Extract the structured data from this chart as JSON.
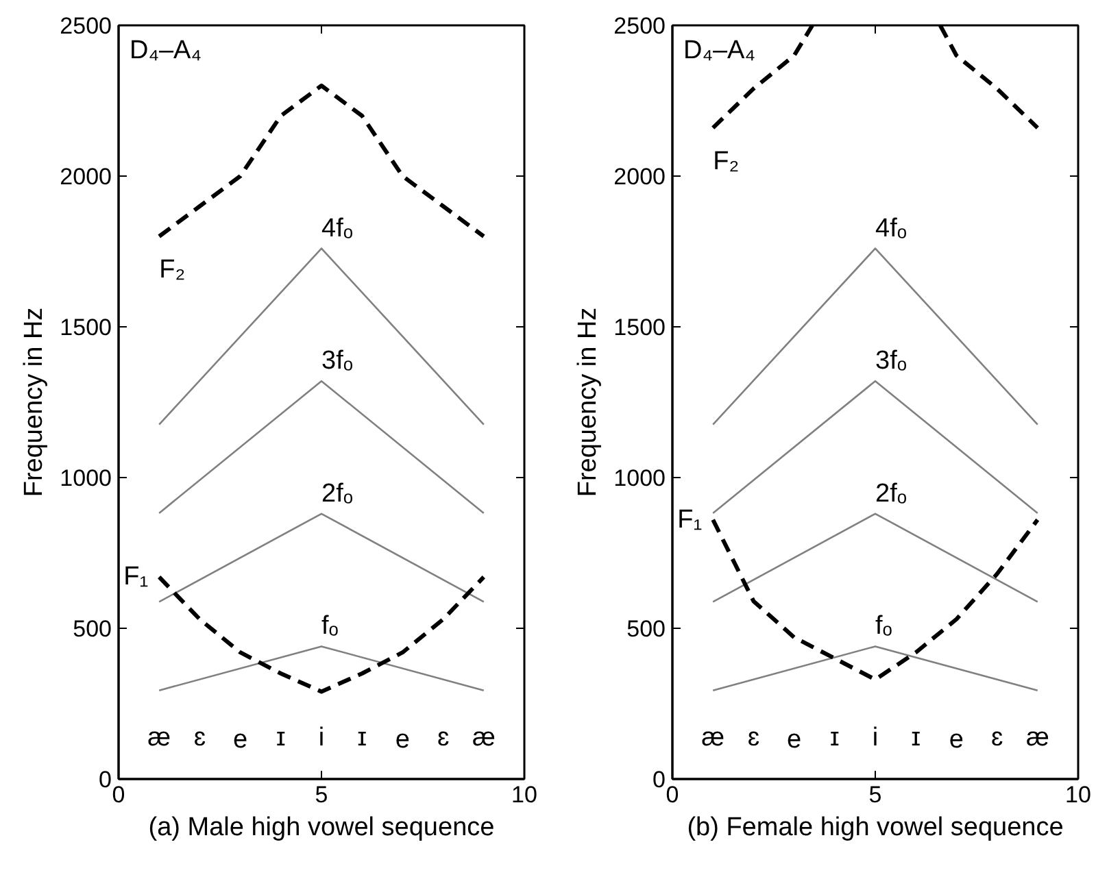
{
  "chart_data": [
    {
      "type": "line",
      "xlabel": "(a) Male high vowel sequence",
      "ylabel": "Frequency in Hz",
      "xlim": [
        0,
        10
      ],
      "ylim": [
        0,
        2500
      ],
      "xticks": [
        0,
        5,
        10
      ],
      "yticks": [
        0,
        500,
        1000,
        1500,
        2000,
        2500
      ],
      "grid": false,
      "series": [
        {
          "name": "fₒ",
          "color": "#808080",
          "x": [
            1,
            5,
            9
          ],
          "values": [
            294,
            440,
            294
          ],
          "line_style": "solid"
        },
        {
          "name": "2fₒ",
          "color": "#808080",
          "x": [
            1,
            5,
            9
          ],
          "values": [
            588,
            880,
            588
          ],
          "line_style": "solid"
        },
        {
          "name": "3fₒ",
          "color": "#808080",
          "x": [
            1,
            5,
            9
          ],
          "values": [
            882,
            1320,
            882
          ],
          "line_style": "solid"
        },
        {
          "name": "4fₒ",
          "color": "#808080",
          "x": [
            1,
            5,
            9
          ],
          "values": [
            1176,
            1760,
            1176
          ],
          "line_style": "solid"
        },
        {
          "name": "F₁",
          "color": "#000000",
          "x": [
            1,
            2,
            3,
            4,
            5,
            6,
            7,
            8,
            9
          ],
          "values": [
            670,
            530,
            420,
            350,
            290,
            350,
            420,
            530,
            670
          ],
          "line_style": "dashed"
        },
        {
          "name": "F₂",
          "color": "#000000",
          "x": [
            1,
            2,
            3,
            4,
            5,
            6,
            7,
            8,
            9
          ],
          "values": [
            1800,
            1900,
            2000,
            2200,
            2300,
            2200,
            2000,
            1900,
            1800
          ],
          "line_style": "dashed"
        }
      ],
      "annotations": [
        "D₄–A₄",
        "æ",
        "ɛ",
        "e",
        "ɪ",
        "i",
        "ɪ",
        "e",
        "ɛ",
        "æ"
      ]
    },
    {
      "type": "line",
      "xlabel": "(b) Female high vowel sequence",
      "ylabel": "Frequency in Hz",
      "xlim": [
        0,
        10
      ],
      "ylim": [
        0,
        2500
      ],
      "xticks": [
        0,
        5,
        10
      ],
      "yticks": [
        0,
        500,
        1000,
        1500,
        2000,
        2500
      ],
      "grid": false,
      "series": [
        {
          "name": "fₒ",
          "color": "#808080",
          "x": [
            1,
            5,
            9
          ],
          "values": [
            294,
            440,
            294
          ],
          "line_style": "solid"
        },
        {
          "name": "2fₒ",
          "color": "#808080",
          "x": [
            1,
            5,
            9
          ],
          "values": [
            588,
            880,
            588
          ],
          "line_style": "solid"
        },
        {
          "name": "3fₒ",
          "color": "#808080",
          "x": [
            1,
            5,
            9
          ],
          "values": [
            882,
            1320,
            882
          ],
          "line_style": "solid"
        },
        {
          "name": "4fₒ",
          "color": "#808080",
          "x": [
            1,
            5,
            9
          ],
          "values": [
            1176,
            1760,
            1176
          ],
          "line_style": "solid"
        },
        {
          "name": "F₁",
          "color": "#000000",
          "x": [
            1,
            2,
            3,
            4,
            5,
            6,
            7,
            8,
            9
          ],
          "values": [
            860,
            590,
            470,
            400,
            330,
            420,
            530,
            680,
            860
          ],
          "line_style": "dashed"
        },
        {
          "name": "F₂",
          "color": "#000000",
          "x": [
            1,
            2,
            3,
            3.45,
            5,
            6.6,
            7,
            8,
            9
          ],
          "values": [
            2160,
            2290,
            2400,
            2500,
            null,
            2500,
            2400,
            2290,
            2160
          ],
          "line_style": "dashed"
        }
      ],
      "annotations": [
        "D₄–A₄",
        "æ",
        "ɛ",
        "e",
        "ɪ",
        "i",
        "ɪ",
        "e",
        "ɛ",
        "æ"
      ]
    }
  ]
}
